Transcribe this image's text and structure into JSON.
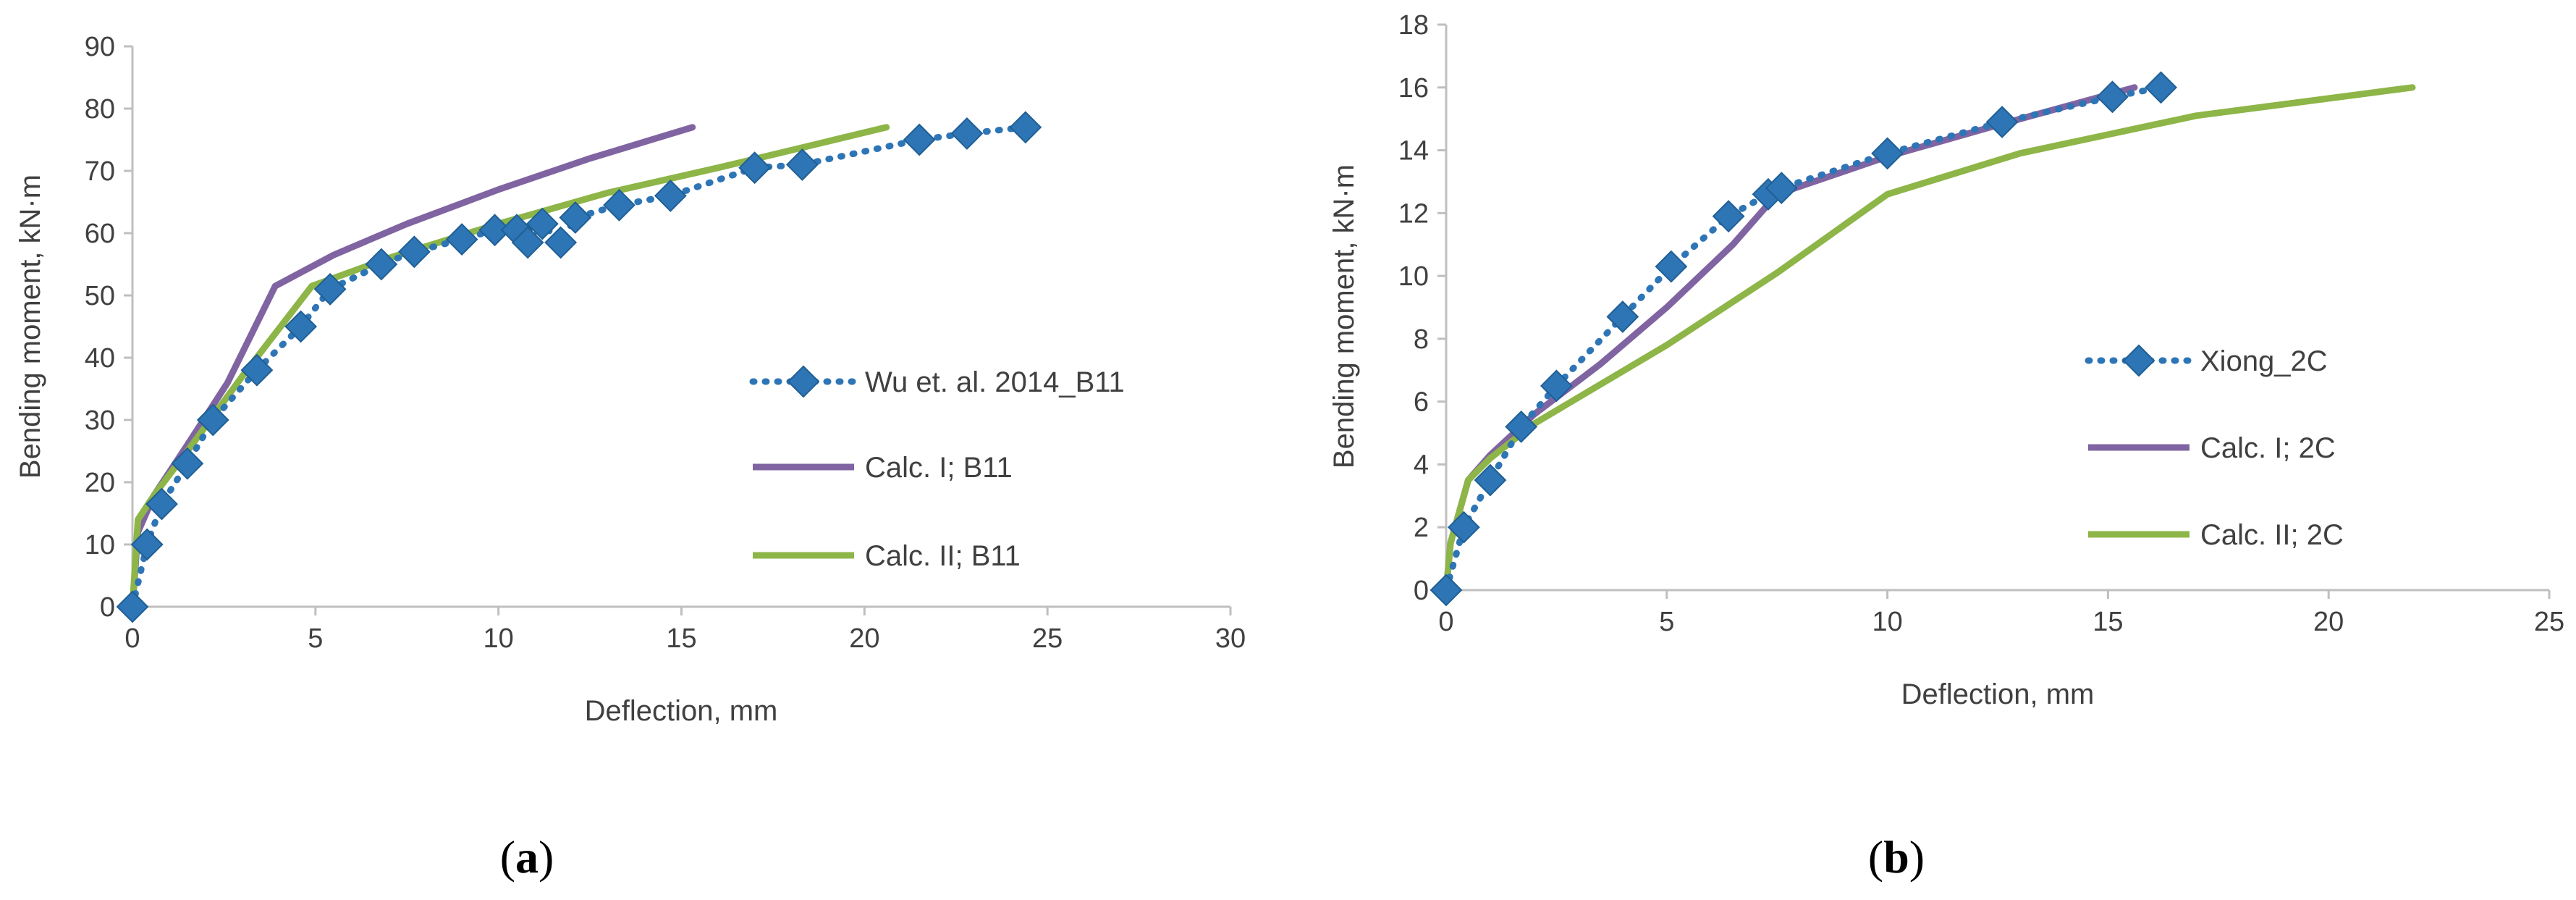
{
  "colors": {
    "experimental": "#2E75B6",
    "calc1": "#8064A2",
    "calc2": "#8DB547",
    "axis": "#BFBFBF",
    "text": "#404040"
  },
  "chart_data": [
    {
      "type": "line",
      "panel": "(a)",
      "panel_letter": "a",
      "xlabel": "Deflection, mm",
      "ylabel": "Bending moment, kN·m",
      "xlim": [
        0,
        30
      ],
      "ylim": [
        0,
        90
      ],
      "xticks": [
        0,
        5,
        10,
        15,
        20,
        25,
        30
      ],
      "yticks": [
        0,
        10,
        20,
        30,
        40,
        50,
        60,
        70,
        80,
        90
      ],
      "xtick_labels": [
        "0",
        "5",
        "10",
        "15",
        "20",
        "25",
        "30"
      ],
      "ytick_labels": [
        "0",
        "10",
        "20",
        "30",
        "40",
        "50",
        "60",
        "70",
        "80",
        "90"
      ],
      "legend_position": "center-right",
      "series": [
        {
          "name": "Wu et. al. 2014_B11",
          "style": "dotted-diamond",
          "color": "#2E75B6",
          "x": [
            0,
            0.4,
            0.8,
            1.5,
            2.2,
            3.4,
            4.6,
            5.4,
            6.8,
            7.7,
            9.0,
            9.9,
            10.5,
            10.8,
            11.2,
            11.7,
            12.1,
            13.3,
            14.7,
            17.0,
            18.3,
            21.5,
            22.8,
            24.4
          ],
          "y": [
            0,
            10,
            16.5,
            23,
            30,
            38,
            45,
            51,
            55,
            57,
            59,
            60.5,
            60.5,
            58.5,
            61.5,
            58.5,
            62.5,
            64.5,
            66,
            70.5,
            71,
            75,
            76,
            77
          ]
        },
        {
          "name": "Calc. I; B11",
          "style": "solid",
          "color": "#8064A2",
          "x": [
            0,
            0.15,
            0.6,
            1.5,
            2.6,
            3.9,
            5.5,
            7.5,
            10,
            12.5,
            15.3
          ],
          "y": [
            0,
            12,
            18,
            26,
            36,
            51.5,
            56.5,
            61.5,
            67,
            72,
            77
          ]
        },
        {
          "name": "Calc. II; B11",
          "style": "solid",
          "color": "#8DB547",
          "x": [
            0,
            0.15,
            0.6,
            1.5,
            3.0,
            4.9,
            7,
            10,
            13,
            16,
            20.6
          ],
          "y": [
            0,
            14,
            18,
            25,
            37,
            51.5,
            56,
            61.5,
            66.5,
            70.5,
            77
          ]
        }
      ]
    },
    {
      "type": "line",
      "panel": "(b)",
      "panel_letter": "b",
      "xlabel": "Deflection, mm",
      "ylabel": "Bending moment, kN·m",
      "xlim": [
        0,
        25
      ],
      "ylim": [
        0,
        18
      ],
      "xticks": [
        0,
        5,
        10,
        15,
        20,
        25
      ],
      "yticks": [
        0,
        2,
        4,
        6,
        8,
        10,
        12,
        14,
        16,
        18
      ],
      "xtick_labels": [
        "0",
        "5",
        "10",
        "15",
        "20",
        "25"
      ],
      "ytick_labels": [
        "0",
        "2",
        "4",
        "6",
        "8",
        "10",
        "12",
        "14",
        "16",
        "18"
      ],
      "legend_position": "center-right",
      "series": [
        {
          "name": "Xiong_2C",
          "style": "dotted-diamond",
          "color": "#2E75B6",
          "x": [
            0,
            0.4,
            1.0,
            1.7,
            2.5,
            4.0,
            5.1,
            6.4,
            7.3,
            7.6,
            10.0,
            12.6,
            15.1,
            16.2
          ],
          "y": [
            0,
            2,
            3.5,
            5.2,
            6.5,
            8.7,
            10.3,
            11.9,
            12.6,
            12.8,
            13.9,
            14.9,
            15.7,
            16
          ]
        },
        {
          "name": "Calc. I; 2C",
          "style": "solid",
          "color": "#8064A2",
          "x": [
            0,
            0.1,
            0.5,
            1.0,
            2.0,
            3.5,
            5.0,
            6.5,
            7.5,
            10,
            12.5,
            15.6
          ],
          "y": [
            0,
            1.5,
            3.5,
            4.3,
            5.6,
            7.2,
            9.0,
            11.0,
            12.6,
            13.8,
            14.8,
            16
          ]
        },
        {
          "name": "Calc. II; 2C",
          "style": "solid",
          "color": "#8DB547",
          "x": [
            0,
            0.1,
            0.5,
            1.0,
            2.0,
            5.0,
            7.5,
            10,
            13,
            17,
            21.9
          ],
          "y": [
            0,
            1.5,
            3.5,
            4.2,
            5.3,
            7.8,
            10.1,
            12.6,
            13.9,
            15.1,
            16
          ]
        }
      ]
    }
  ]
}
